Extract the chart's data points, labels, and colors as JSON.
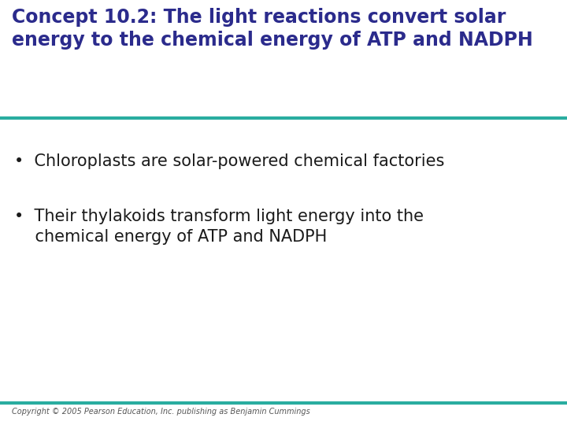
{
  "title_line1": "Concept 10.2: The light reactions convert solar",
  "title_line2": "energy to the chemical energy of ATP and NADPH",
  "title_color": "#2B2B8C",
  "title_fontsize": 17,
  "bullet1": "Chloroplasts are solar-powered chemical factories",
  "bullet2_line1": "Their thylakoids transform light energy into the",
  "bullet2_line2": "chemical energy of ATP and NADPH",
  "bullet_fontsize": 15,
  "bullet_color": "#1a1a1a",
  "background_color": "#ffffff",
  "line_color": "#2aada0",
  "line_width": 3.0,
  "copyright": "Copyright © 2005 Pearson Education, Inc. publishing as Benjamin Cummings",
  "copyright_fontsize": 7,
  "copyright_color": "#555555"
}
